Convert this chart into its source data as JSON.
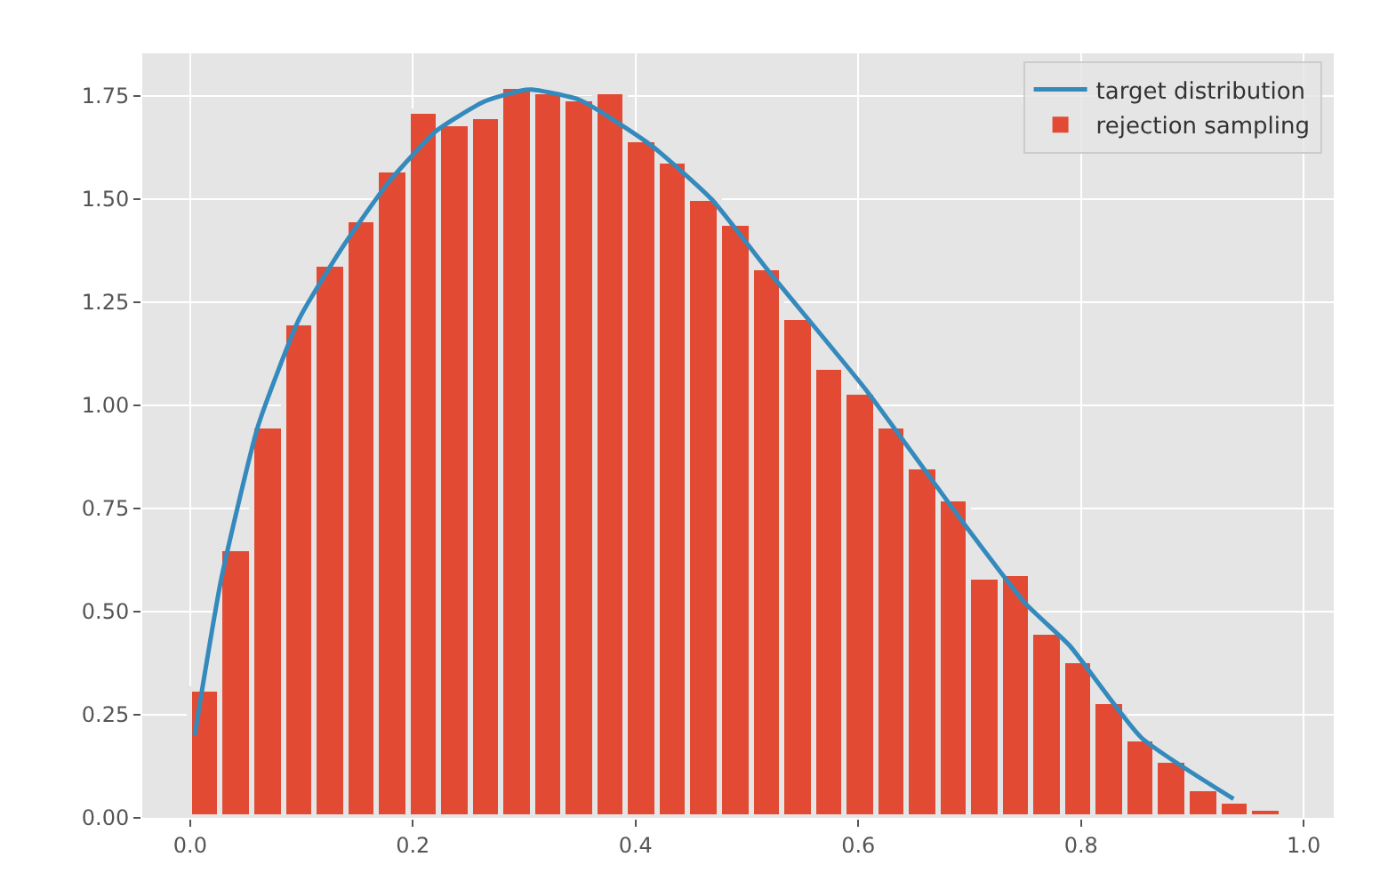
{
  "chart_data": {
    "type": "histogram",
    "bins": [
      0,
      0.028,
      0.056,
      0.084,
      0.112,
      0.14,
      0.168,
      0.196,
      0.224,
      0.252,
      0.28,
      0.308,
      0.336,
      0.364,
      0.392,
      0.42,
      0.448,
      0.476,
      0.504,
      0.532,
      0.56,
      0.588,
      0.616,
      0.644,
      0.672,
      0.7,
      0.728,
      0.756,
      0.784,
      0.812,
      0.84,
      0.868,
      0.896,
      0.924,
      0.952,
      0.98
    ],
    "series": [
      {
        "name": "target distribution",
        "type": "line",
        "color": "#348abd",
        "x": [
          0.004,
          0.028,
          0.061,
          0.098,
          0.136,
          0.178,
          0.221,
          0.264,
          0.296,
          0.307,
          0.35,
          0.414,
          0.468,
          0.521,
          0.607,
          0.693,
          0.75,
          0.79,
          0.854,
          0.937
        ],
        "values": [
          0.2,
          0.58,
          0.95,
          1.21,
          1.38,
          1.54,
          1.665,
          1.736,
          1.762,
          1.765,
          1.74,
          1.63,
          1.5,
          1.32,
          1.037,
          0.72,
          0.52,
          0.417,
          0.195,
          0.046
        ]
      },
      {
        "name": "rejection sampling",
        "color": "#e24a33",
        "values": [
          0.31,
          0.65,
          0.95,
          1.2,
          1.34,
          1.45,
          1.57,
          1.71,
          1.68,
          1.7,
          1.77,
          1.76,
          1.74,
          1.76,
          1.64,
          1.59,
          1.5,
          1.44,
          1.33,
          1.21,
          1.09,
          1.03,
          0.95,
          0.85,
          0.77,
          0.58,
          0.59,
          0.45,
          0.38,
          0.28,
          0.19,
          0.14,
          0.07,
          0.04,
          0.02
        ]
      }
    ],
    "xlim": [
      -0.043,
      1.027
    ],
    "xticks": [
      {
        "value": 0,
        "label": "0.0"
      },
      {
        "value": 0.2,
        "label": "0.2"
      },
      {
        "value": 0.4,
        "label": "0.4"
      },
      {
        "value": 0.6,
        "label": "0.6"
      },
      {
        "value": 0.8,
        "label": "0.8"
      },
      {
        "value": 1,
        "label": "1.0"
      }
    ],
    "ylim": [
      0,
      1.853
    ],
    "yticks": [
      {
        "value": 0,
        "label": "0.00"
      },
      {
        "value": 0.25,
        "label": "0.25"
      },
      {
        "value": 0.5,
        "label": "0.50"
      },
      {
        "value": 0.75,
        "label": "0.75"
      },
      {
        "value": 1,
        "label": "1.00"
      },
      {
        "value": 1.25,
        "label": "1.25"
      },
      {
        "value": 1.5,
        "label": "1.50"
      },
      {
        "value": 1.75,
        "label": "1.75"
      }
    ],
    "grid": true,
    "legend": "top right"
  }
}
